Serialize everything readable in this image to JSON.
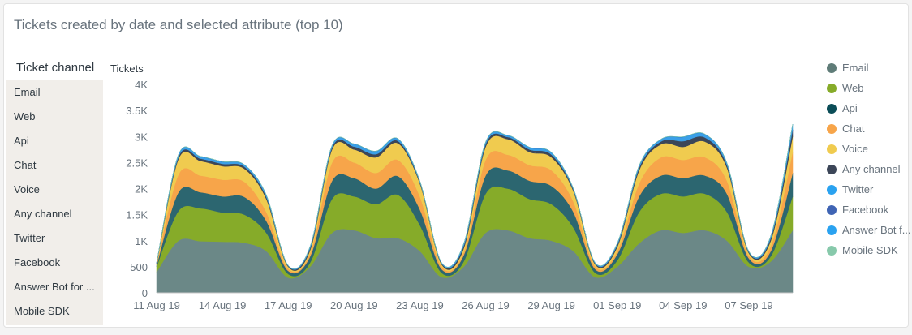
{
  "title": "Tickets created by date and selected attribute (top 10)",
  "sidebar": {
    "heading": "Ticket channel",
    "items": [
      "Email",
      "Web",
      "Api",
      "Chat",
      "Voice",
      "Any channel",
      "Twitter",
      "Facebook",
      "Answer Bot for ...",
      "Mobile SDK"
    ]
  },
  "chart_data": {
    "type": "area",
    "stacked": true,
    "ylabel": "Tickets",
    "ylim": [
      0,
      4000
    ],
    "yticks": [
      0,
      500,
      1000,
      1500,
      2000,
      2500,
      3000,
      3500,
      4000
    ],
    "ytick_labels": [
      "0",
      "500",
      "1K",
      "1.5K",
      "2K",
      "2.5K",
      "3K",
      "3.5K",
      "4K"
    ],
    "x_start": "11 Aug 19",
    "x_tick_labels": [
      "11 Aug 19",
      "14 Aug 19",
      "17 Aug 19",
      "20 Aug 19",
      "23 Aug 19",
      "26 Aug 19",
      "29 Aug 19",
      "01 Sep 19",
      "04 Sep 19",
      "07 Sep 19"
    ],
    "x_tick_step_days": 3,
    "legend_position": "right",
    "series": [
      {
        "name": "Email",
        "color": "#6b8887",
        "values": [
          400,
          1000,
          990,
          980,
          960,
          800,
          290,
          500,
          1150,
          1200,
          1050,
          1050,
          800,
          300,
          500,
          1150,
          1200,
          1050,
          1000,
          800,
          300,
          500,
          950,
          1200,
          1150,
          1200,
          1000,
          500,
          600,
          1200
        ]
      },
      {
        "name": "Web",
        "color": "#86ab29",
        "values": [
          100,
          570,
          630,
          560,
          540,
          350,
          70,
          80,
          650,
          650,
          650,
          830,
          500,
          80,
          100,
          750,
          800,
          750,
          700,
          450,
          80,
          120,
          600,
          700,
          700,
          700,
          550,
          80,
          100,
          650
        ]
      },
      {
        "name": "Api",
        "color": "#2c6670",
        "values": [
          30,
          360,
          310,
          310,
          340,
          230,
          60,
          120,
          350,
          350,
          300,
          360,
          300,
          70,
          120,
          350,
          350,
          350,
          350,
          300,
          70,
          120,
          300,
          350,
          350,
          350,
          350,
          80,
          100,
          450
        ]
      },
      {
        "name": "Chat",
        "color": "#f7a54a",
        "values": [
          15,
          340,
          320,
          320,
          290,
          170,
          40,
          60,
          350,
          300,
          300,
          310,
          250,
          50,
          60,
          300,
          300,
          300,
          300,
          200,
          50,
          60,
          250,
          350,
          350,
          350,
          250,
          50,
          100,
          400
        ]
      },
      {
        "name": "Voice",
        "color": "#f0cb4f",
        "values": [
          15,
          300,
          280,
          260,
          250,
          250,
          40,
          60,
          250,
          250,
          300,
          320,
          250,
          40,
          70,
          250,
          300,
          250,
          250,
          200,
          40,
          80,
          250,
          250,
          250,
          300,
          250,
          50,
          100,
          300
        ]
      },
      {
        "name": "Any channel",
        "color": "#3c4658",
        "values": [
          10,
          40,
          45,
          45,
          40,
          40,
          15,
          40,
          40,
          55,
          60,
          45,
          25,
          20,
          50,
          50,
          40,
          50,
          50,
          30,
          20,
          40,
          50,
          55,
          110,
          80,
          50,
          20,
          50,
          130
        ]
      },
      {
        "name": "Twitter",
        "color": "#3aa0e8",
        "values": [
          8,
          40,
          40,
          40,
          35,
          35,
          10,
          30,
          35,
          50,
          55,
          40,
          20,
          15,
          40,
          40,
          30,
          40,
          40,
          20,
          15,
          30,
          40,
          40,
          80,
          60,
          40,
          15,
          40,
          100
        ]
      },
      {
        "name": "Facebook",
        "color": "#3f64b4",
        "values": [
          1,
          3,
          3,
          3,
          3,
          3,
          1,
          2,
          3,
          3,
          3,
          3,
          3,
          1,
          2,
          3,
          3,
          3,
          3,
          3,
          1,
          2,
          3,
          3,
          3,
          3,
          3,
          1,
          2,
          3
        ]
      },
      {
        "name": "Answer Bot for ...",
        "label": "Answer Bot f...",
        "color": "#2aa2f0",
        "values": [
          1,
          2,
          2,
          2,
          2,
          2,
          1,
          1,
          2,
          2,
          2,
          2,
          2,
          1,
          1,
          2,
          2,
          2,
          2,
          2,
          1,
          1,
          2,
          2,
          2,
          2,
          2,
          1,
          1,
          2
        ]
      },
      {
        "name": "Mobile SDK",
        "color": "#87c9ab",
        "values": [
          0,
          1,
          1,
          1,
          1,
          1,
          0,
          1,
          1,
          1,
          1,
          1,
          1,
          0,
          1,
          1,
          1,
          1,
          1,
          1,
          0,
          1,
          1,
          1,
          1,
          1,
          1,
          0,
          1,
          1
        ]
      }
    ]
  },
  "legend_dot_colors": [
    "#5f7c78",
    "#86ab29",
    "#0b4d57",
    "#f7a54a",
    "#f0cb4f",
    "#3c4658",
    "#2aa2f0",
    "#3f64b4",
    "#2aa2f0",
    "#87c9ab"
  ]
}
